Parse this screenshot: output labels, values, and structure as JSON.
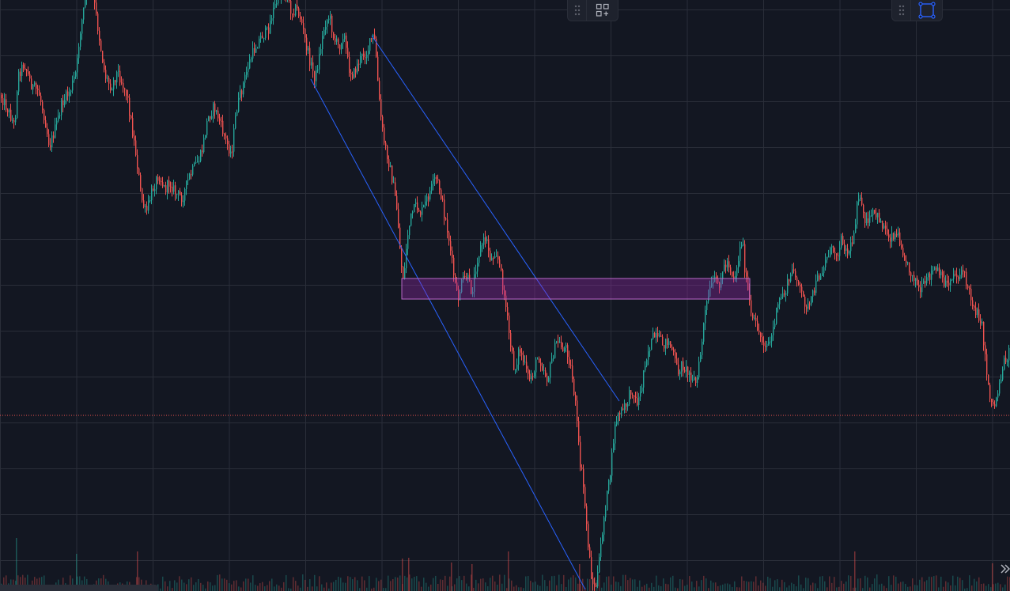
{
  "theme": {
    "background": "#131722",
    "grid": "#2a2e39",
    "up": "#26a69a",
    "down": "#ef5350",
    "channel": "#2962ff",
    "zone_fill": "#9c27b0",
    "zone_border": "#ba68c8",
    "price_line": "#ef5350",
    "toolbar_bg": "#1e222d",
    "icon": "#b2b5be",
    "icon_active": "#2962ff"
  },
  "toolbars": {
    "layout": {
      "drag_icon": "drag-dots-icon",
      "button_icon": "grid-add-icon"
    },
    "select": {
      "drag_icon": "drag-dots-icon",
      "button_icon": "rectangle-select-icon"
    }
  },
  "scroll": {
    "collapse_icon": "double-chevron-right-icon"
  },
  "chart_data": {
    "type": "candlestick",
    "price_axis_range": [
      0,
      747
    ],
    "price_path": [
      [
        0,
        120
      ],
      [
        10,
        140
      ],
      [
        18,
        160
      ],
      [
        22,
        95
      ],
      [
        30,
        80
      ],
      [
        40,
        110
      ],
      [
        48,
        115
      ],
      [
        56,
        150
      ],
      [
        62,
        185
      ],
      [
        70,
        160
      ],
      [
        78,
        130
      ],
      [
        88,
        115
      ],
      [
        96,
        90
      ],
      [
        100,
        45
      ],
      [
        106,
        5
      ],
      [
        112,
        -20
      ],
      [
        118,
        0
      ],
      [
        126,
        55
      ],
      [
        132,
        95
      ],
      [
        140,
        110
      ],
      [
        148,
        90
      ],
      [
        156,
        110
      ],
      [
        160,
        120
      ],
      [
        166,
        160
      ],
      [
        172,
        200
      ],
      [
        178,
        250
      ],
      [
        184,
        270
      ],
      [
        192,
        240
      ],
      [
        200,
        220
      ],
      [
        208,
        240
      ],
      [
        214,
        230
      ],
      [
        222,
        245
      ],
      [
        230,
        250
      ],
      [
        238,
        225
      ],
      [
        246,
        210
      ],
      [
        254,
        195
      ],
      [
        262,
        150
      ],
      [
        270,
        135
      ],
      [
        276,
        150
      ],
      [
        284,
        175
      ],
      [
        292,
        195
      ],
      [
        298,
        140
      ],
      [
        306,
        110
      ],
      [
        314,
        80
      ],
      [
        322,
        60
      ],
      [
        330,
        45
      ],
      [
        338,
        40
      ],
      [
        344,
        15
      ],
      [
        350,
        0
      ],
      [
        356,
        -15
      ],
      [
        362,
        -5
      ],
      [
        368,
        15
      ],
      [
        374,
        10
      ],
      [
        380,
        25
      ],
      [
        386,
        55
      ],
      [
        392,
        80
      ],
      [
        398,
        100
      ],
      [
        404,
        65
      ],
      [
        410,
        30
      ],
      [
        416,
        20
      ],
      [
        422,
        50
      ],
      [
        428,
        60
      ],
      [
        434,
        40
      ],
      [
        440,
        85
      ],
      [
        446,
        95
      ],
      [
        452,
        80
      ],
      [
        458,
        70
      ],
      [
        464,
        65
      ],
      [
        470,
        45
      ],
      [
        474,
        55
      ],
      [
        478,
        120
      ],
      [
        484,
        175
      ],
      [
        490,
        200
      ],
      [
        496,
        230
      ],
      [
        502,
        270
      ],
      [
        506,
        330
      ],
      [
        510,
        355
      ],
      [
        514,
        300
      ],
      [
        520,
        270
      ],
      [
        526,
        260
      ],
      [
        532,
        270
      ],
      [
        538,
        255
      ],
      [
        544,
        240
      ],
      [
        550,
        225
      ],
      [
        556,
        240
      ],
      [
        560,
        265
      ],
      [
        566,
        295
      ],
      [
        572,
        340
      ],
      [
        578,
        380
      ],
      [
        584,
        355
      ],
      [
        590,
        350
      ],
      [
        596,
        370
      ],
      [
        602,
        330
      ],
      [
        608,
        310
      ],
      [
        614,
        300
      ],
      [
        620,
        330
      ],
      [
        626,
        315
      ],
      [
        632,
        340
      ],
      [
        638,
        380
      ],
      [
        644,
        430
      ],
      [
        650,
        470
      ],
      [
        656,
        440
      ],
      [
        662,
        460
      ],
      [
        668,
        480
      ],
      [
        674,
        470
      ],
      [
        680,
        450
      ],
      [
        686,
        465
      ],
      [
        692,
        480
      ],
      [
        698,
        450
      ],
      [
        704,
        430
      ],
      [
        710,
        440
      ],
      [
        716,
        440
      ],
      [
        722,
        470
      ],
      [
        728,
        520
      ],
      [
        732,
        580
      ],
      [
        736,
        605
      ],
      [
        740,
        650
      ],
      [
        744,
        700
      ],
      [
        748,
        735
      ],
      [
        752,
        745
      ],
      [
        756,
        720
      ],
      [
        760,
        680
      ],
      [
        764,
        645
      ],
      [
        768,
        620
      ],
      [
        772,
        590
      ],
      [
        776,
        545
      ],
      [
        780,
        525
      ],
      [
        786,
        520
      ],
      [
        792,
        510
      ],
      [
        798,
        490
      ],
      [
        804,
        510
      ],
      [
        810,
        495
      ],
      [
        814,
        460
      ],
      [
        820,
        440
      ],
      [
        826,
        425
      ],
      [
        832,
        430
      ],
      [
        838,
        435
      ],
      [
        844,
        430
      ],
      [
        850,
        445
      ],
      [
        856,
        470
      ],
      [
        862,
        460
      ],
      [
        868,
        470
      ],
      [
        874,
        475
      ],
      [
        880,
        485
      ],
      [
        886,
        440
      ],
      [
        890,
        400
      ],
      [
        896,
        370
      ],
      [
        902,
        355
      ],
      [
        908,
        360
      ],
      [
        914,
        340
      ],
      [
        920,
        330
      ],
      [
        926,
        350
      ],
      [
        930,
        345
      ],
      [
        934,
        320
      ],
      [
        938,
        300
      ],
      [
        942,
        350
      ],
      [
        946,
        375
      ],
      [
        950,
        405
      ],
      [
        956,
        410
      ],
      [
        962,
        430
      ],
      [
        968,
        435
      ],
      [
        974,
        430
      ],
      [
        980,
        400
      ],
      [
        986,
        375
      ],
      [
        992,
        370
      ],
      [
        998,
        350
      ],
      [
        1004,
        340
      ],
      [
        1010,
        365
      ],
      [
        1016,
        380
      ],
      [
        1022,
        390
      ],
      [
        1028,
        370
      ],
      [
        1034,
        350
      ],
      [
        1040,
        340
      ],
      [
        1046,
        320
      ],
      [
        1052,
        315
      ],
      [
        1058,
        320
      ],
      [
        1064,
        300
      ],
      [
        1070,
        320
      ],
      [
        1076,
        310
      ],
      [
        1080,
        290
      ],
      [
        1084,
        240
      ],
      [
        1090,
        270
      ],
      [
        1096,
        285
      ],
      [
        1102,
        270
      ],
      [
        1110,
        275
      ],
      [
        1116,
        285
      ],
      [
        1124,
        300
      ],
      [
        1130,
        295
      ],
      [
        1136,
        300
      ],
      [
        1142,
        320
      ],
      [
        1148,
        340
      ],
      [
        1156,
        350
      ],
      [
        1162,
        370
      ],
      [
        1168,
        360
      ],
      [
        1174,
        350
      ],
      [
        1180,
        340
      ],
      [
        1186,
        345
      ],
      [
        1192,
        355
      ],
      [
        1198,
        360
      ],
      [
        1204,
        345
      ],
      [
        1210,
        350
      ],
      [
        1216,
        340
      ],
      [
        1222,
        360
      ],
      [
        1228,
        380
      ],
      [
        1234,
        395
      ],
      [
        1240,
        405
      ],
      [
        1244,
        440
      ],
      [
        1248,
        480
      ],
      [
        1252,
        505
      ],
      [
        1256,
        515
      ],
      [
        1262,
        490
      ],
      [
        1268,
        460
      ],
      [
        1277,
        440
      ]
    ],
    "grid": {
      "enabled": true,
      "x_step": 96.5,
      "y_step": 58
    },
    "price_line": {
      "y": 525,
      "style": "dotted"
    },
    "drawings": {
      "channel": [
        [
          [
            470,
            45
          ],
          [
            783,
            507
          ]
        ],
        [
          [
            393,
            100
          ],
          [
            740,
            745
          ]
        ]
      ],
      "zone": {
        "x1": 508,
        "x2": 948,
        "y1": 352,
        "y2": 378
      }
    },
    "volume": {
      "bars": [
        [
          20,
          680
        ],
        [
          96,
          700
        ],
        [
          173,
          697
        ],
        [
          508,
          706
        ],
        [
          516,
          705
        ],
        [
          570,
          711
        ],
        [
          596,
          713
        ],
        [
          642,
          697
        ],
        [
          732,
          713
        ],
        [
          1080,
          697
        ],
        [
          1254,
          712
        ]
      ]
    }
  }
}
